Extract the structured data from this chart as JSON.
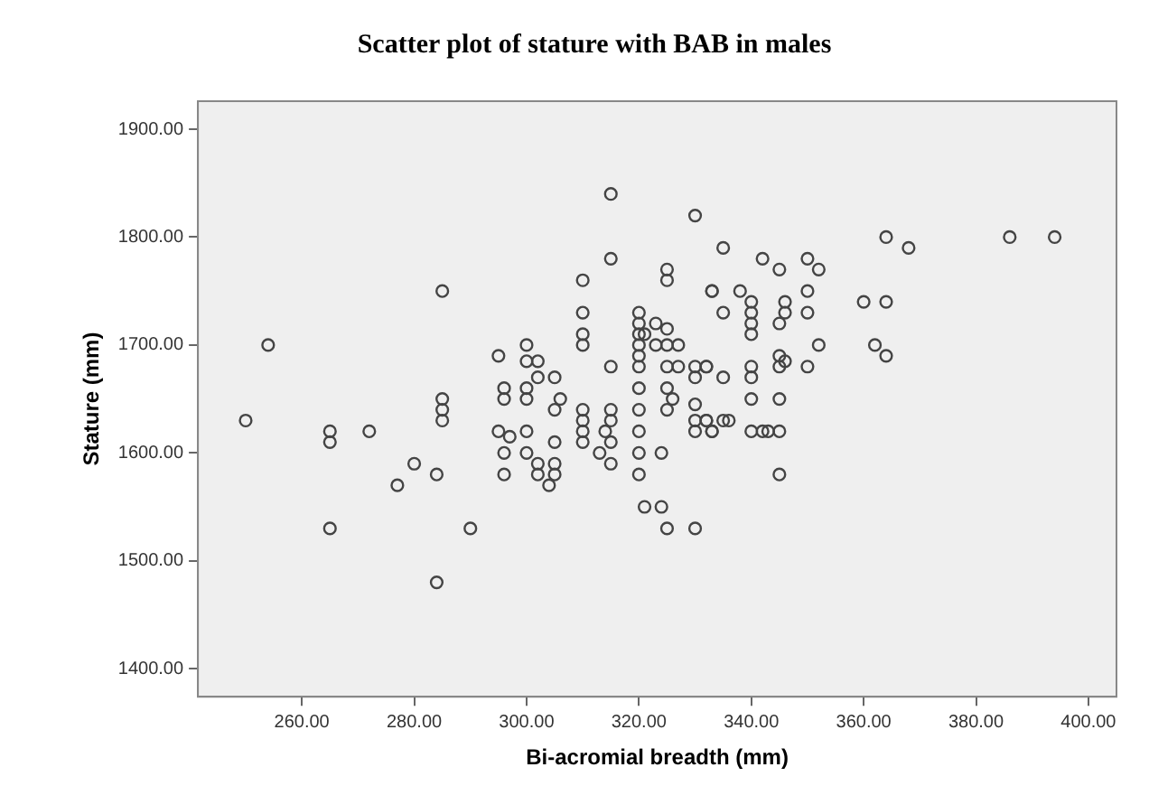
{
  "chart_data": {
    "type": "scatter",
    "title": "Scatter plot of stature with BAB in males",
    "xlabel": "Bi-acromial breadth (mm)",
    "ylabel": "Stature (mm)",
    "xlim": [
      241.5,
      405
    ],
    "ylim": [
      1374,
      1926
    ],
    "xticks": [
      {
        "value": 260,
        "label": "260.00"
      },
      {
        "value": 280,
        "label": "280.00"
      },
      {
        "value": 300,
        "label": "300.00"
      },
      {
        "value": 320,
        "label": "320.00"
      },
      {
        "value": 340,
        "label": "340.00"
      },
      {
        "value": 360,
        "label": "360.00"
      },
      {
        "value": 380,
        "label": "380.00"
      },
      {
        "value": 400,
        "label": "400.00"
      }
    ],
    "yticks": [
      {
        "value": 1400,
        "label": "1400.00"
      },
      {
        "value": 1500,
        "label": "1500.00"
      },
      {
        "value": 1600,
        "label": "1600.00"
      },
      {
        "value": 1700,
        "label": "1700.00"
      },
      {
        "value": 1800,
        "label": "1800.00"
      },
      {
        "value": 1900,
        "label": "1900.00"
      }
    ],
    "grid": false,
    "legend": false,
    "marker": "circle",
    "series": [
      {
        "color": "#444444",
        "x": [
          250,
          254,
          265,
          265,
          265,
          272,
          277,
          280,
          284,
          284,
          285,
          285,
          285,
          285,
          290,
          295,
          295,
          296,
          296,
          296,
          296,
          300,
          300,
          300,
          300,
          300,
          300,
          302,
          302,
          297,
          302,
          302,
          305,
          306,
          305,
          305,
          305,
          305,
          304,
          310,
          310,
          310,
          310,
          310,
          310,
          310,
          310,
          315,
          315,
          315,
          315,
          315,
          315,
          314,
          313,
          315,
          320,
          320,
          320,
          320,
          320,
          320,
          320,
          320,
          320,
          320,
          320,
          321,
          323,
          325,
          323,
          325,
          327,
          325,
          325,
          330,
          333,
          325,
          327,
          330,
          332,
          330,
          325,
          326,
          325,
          330,
          330,
          332,
          330,
          333,
          324,
          321,
          324,
          325,
          330,
          332,
          332,
          333,
          335,
          335,
          335,
          333,
          335,
          336,
          338,
          340,
          340,
          340,
          340,
          340,
          340,
          340,
          340,
          342,
          343,
          345,
          342,
          345,
          346,
          346,
          345,
          345,
          345,
          346,
          345,
          345,
          350,
          352,
          350,
          350,
          352,
          350,
          360,
          364,
          364,
          368,
          362,
          364,
          386,
          394
        ],
        "values": [
          1630,
          1700,
          1620,
          1610,
          1530,
          1620,
          1570,
          1590,
          1580,
          1480,
          1750,
          1650,
          1640,
          1630,
          1530,
          1690,
          1620,
          1660,
          1650,
          1600,
          1580,
          1700,
          1685,
          1660,
          1650,
          1620,
          1600,
          1685,
          1670,
          1615,
          1590,
          1580,
          1670,
          1650,
          1640,
          1610,
          1590,
          1580,
          1570,
          1760,
          1730,
          1710,
          1700,
          1640,
          1630,
          1620,
          1610,
          1840,
          1780,
          1680,
          1640,
          1630,
          1610,
          1620,
          1600,
          1590,
          1730,
          1720,
          1710,
          1700,
          1690,
          1680,
          1660,
          1640,
          1620,
          1600,
          1580,
          1710,
          1720,
          1715,
          1700,
          1700,
          1700,
          1770,
          1760,
          1820,
          1750,
          1680,
          1680,
          1680,
          1680,
          1670,
          1660,
          1650,
          1640,
          1645,
          1630,
          1630,
          1620,
          1620,
          1600,
          1550,
          1550,
          1530,
          1530,
          1680,
          1630,
          1620,
          1790,
          1730,
          1670,
          1750,
          1630,
          1630,
          1750,
          1740,
          1730,
          1720,
          1710,
          1680,
          1670,
          1650,
          1620,
          1620,
          1620,
          1620,
          1780,
          1770,
          1740,
          1730,
          1720,
          1690,
          1680,
          1685,
          1650,
          1580,
          1780,
          1770,
          1750,
          1730,
          1700,
          1680,
          1740,
          1740,
          1800,
          1790,
          1700,
          1690,
          1800,
          1800
        ]
      }
    ]
  }
}
